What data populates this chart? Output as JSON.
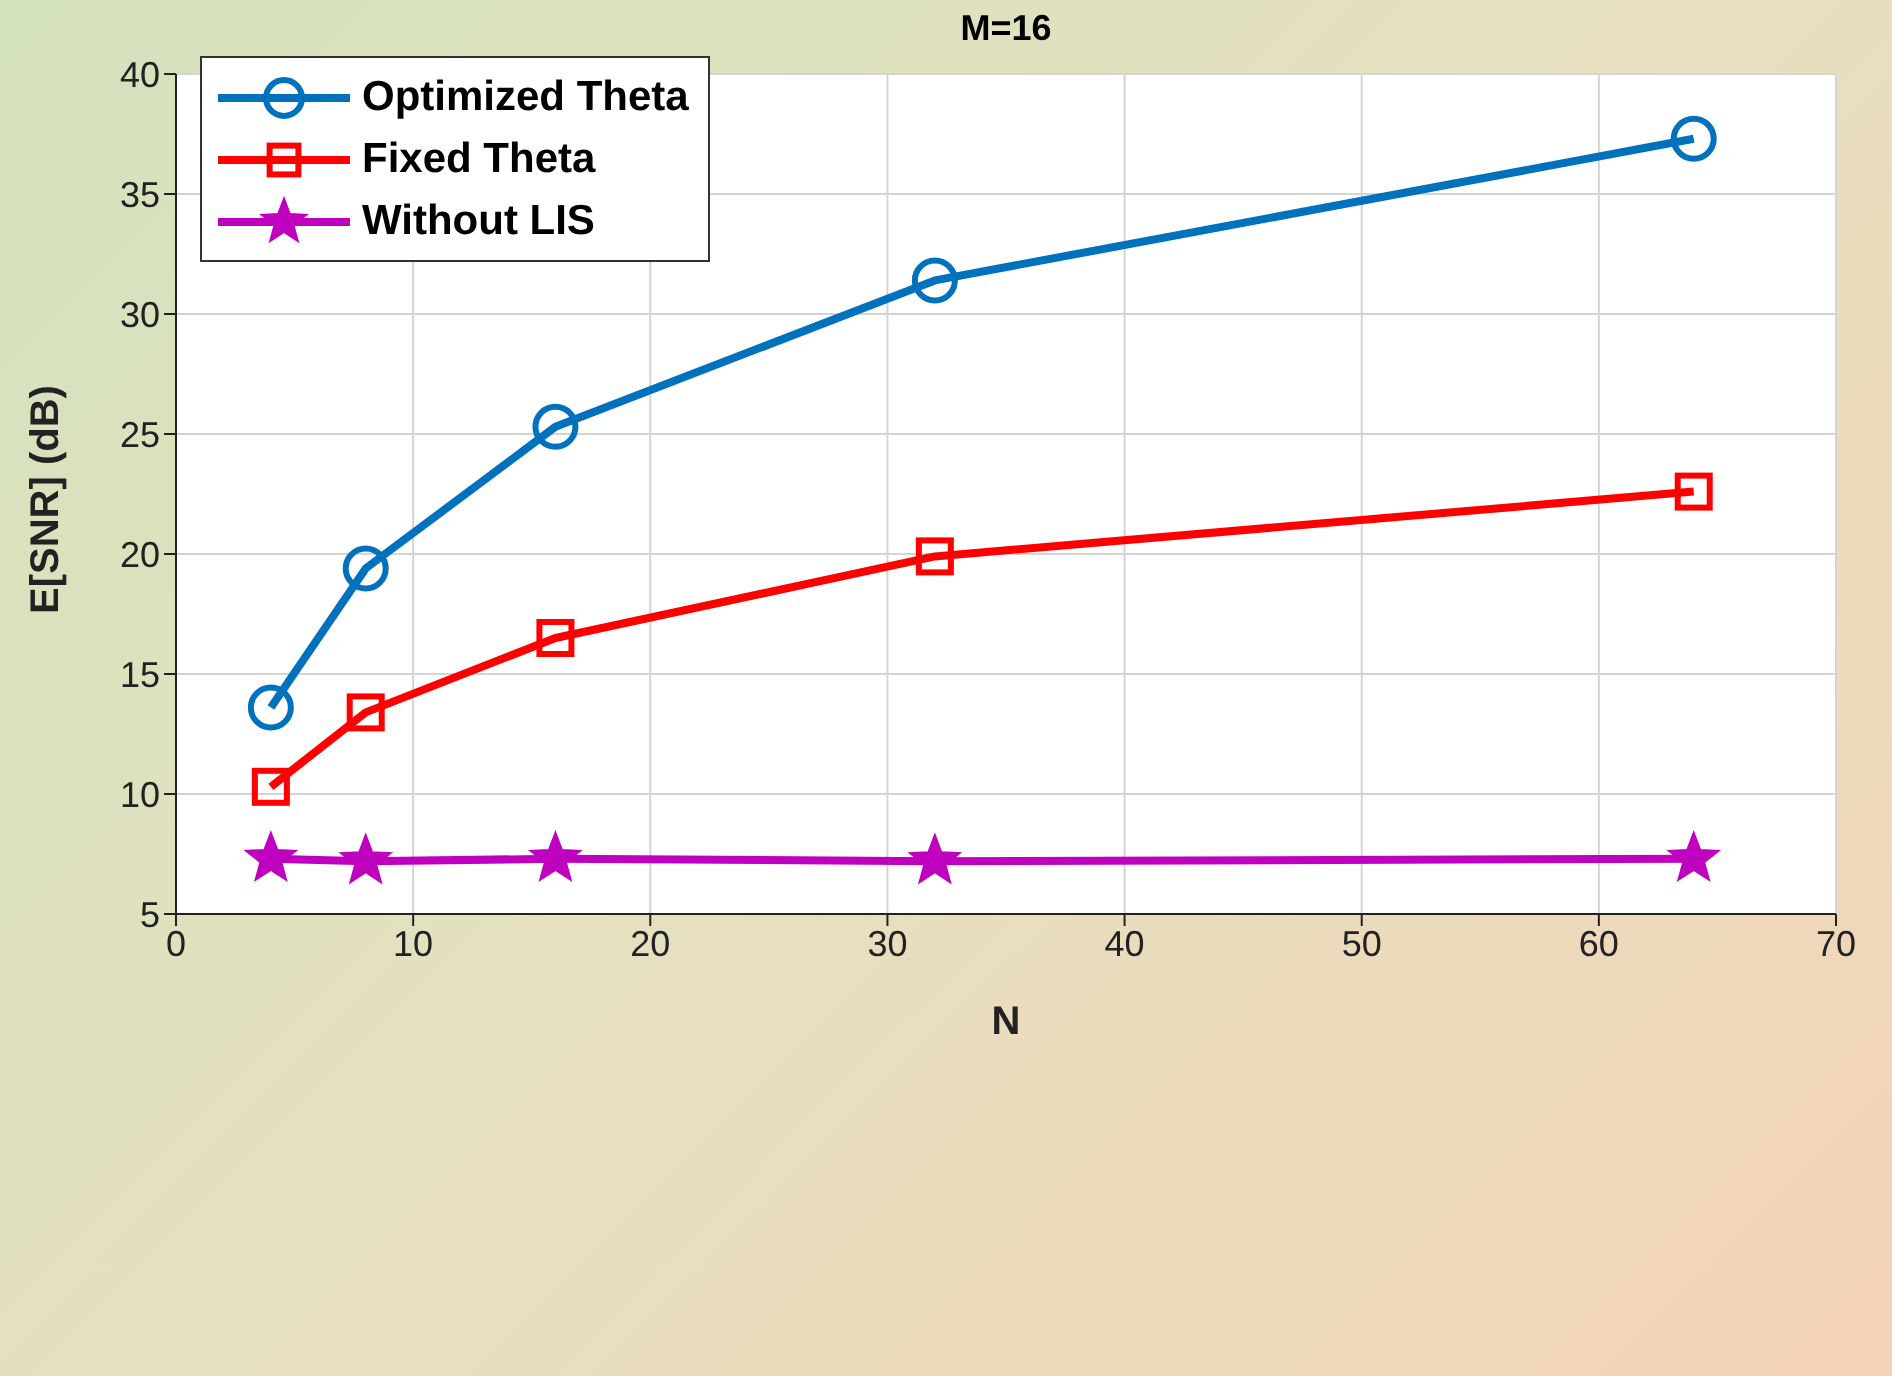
{
  "chart_data": {
    "type": "line",
    "title": "M=16",
    "xlabel": "N",
    "ylabel": "E[SNR] (dB)",
    "x": [
      4,
      8,
      16,
      32,
      64
    ],
    "series": [
      {
        "name": "Optimized Theta",
        "color": "#0072bd",
        "marker": "circle",
        "values": [
          13.6,
          19.4,
          25.3,
          31.4,
          37.3
        ]
      },
      {
        "name": "Fixed Theta",
        "color": "#ff0000",
        "marker": "square",
        "values": [
          10.3,
          13.4,
          16.5,
          19.9,
          22.6
        ]
      },
      {
        "name": "Without LIS",
        "color": "#bf00bf",
        "marker": "star",
        "values": [
          7.3,
          7.2,
          7.3,
          7.2,
          7.3
        ]
      }
    ],
    "xlim": [
      0,
      70
    ],
    "xticks": [
      0,
      10,
      20,
      30,
      40,
      50,
      60,
      70
    ],
    "ylim": [
      5,
      40
    ],
    "yticks": [
      5,
      10,
      15,
      20,
      25,
      30,
      35,
      40
    ],
    "grid": true,
    "legend": "top left",
    "line_style": "solid"
  }
}
